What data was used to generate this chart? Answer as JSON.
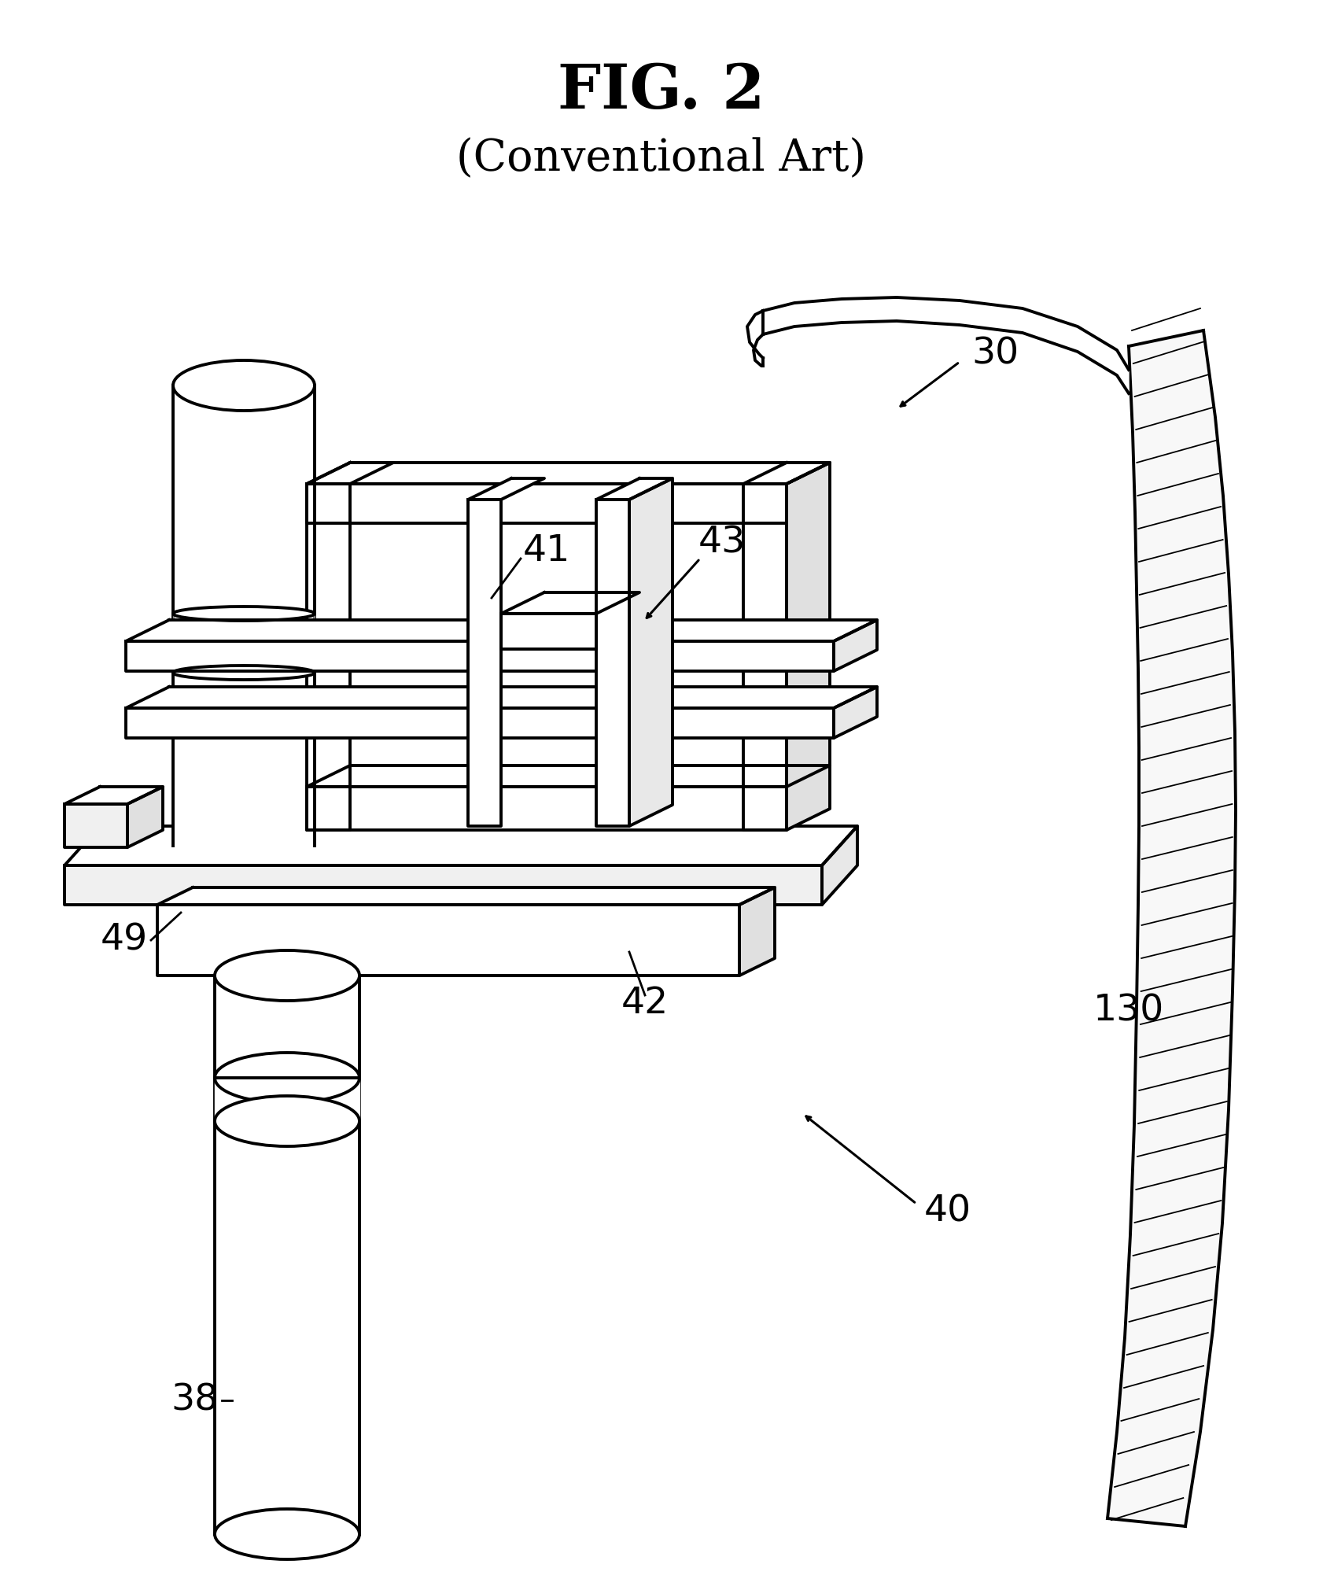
{
  "title": "FIG. 2",
  "subtitle": "(Conventional Art)",
  "title_fontsize": 56,
  "subtitle_fontsize": 40,
  "bg_color": "#ffffff",
  "line_color": "#000000",
  "label_fontsize": 34
}
